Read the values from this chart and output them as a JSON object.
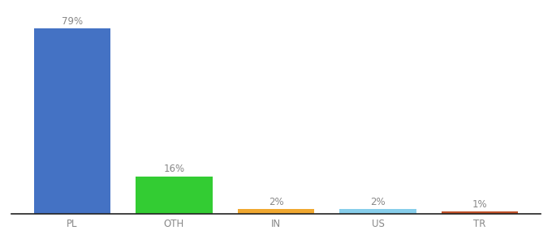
{
  "categories": [
    "PL",
    "OTH",
    "IN",
    "US",
    "TR"
  ],
  "values": [
    79,
    16,
    2,
    2,
    1
  ],
  "labels": [
    "79%",
    "16%",
    "2%",
    "2%",
    "1%"
  ],
  "bar_colors": [
    "#4472c4",
    "#33cc33",
    "#f0a830",
    "#87ceeb",
    "#c0522a"
  ],
  "background_color": "#ffffff",
  "ylim": [
    0,
    88
  ],
  "label_fontsize": 8.5,
  "tick_fontsize": 8.5,
  "bar_width": 0.75
}
